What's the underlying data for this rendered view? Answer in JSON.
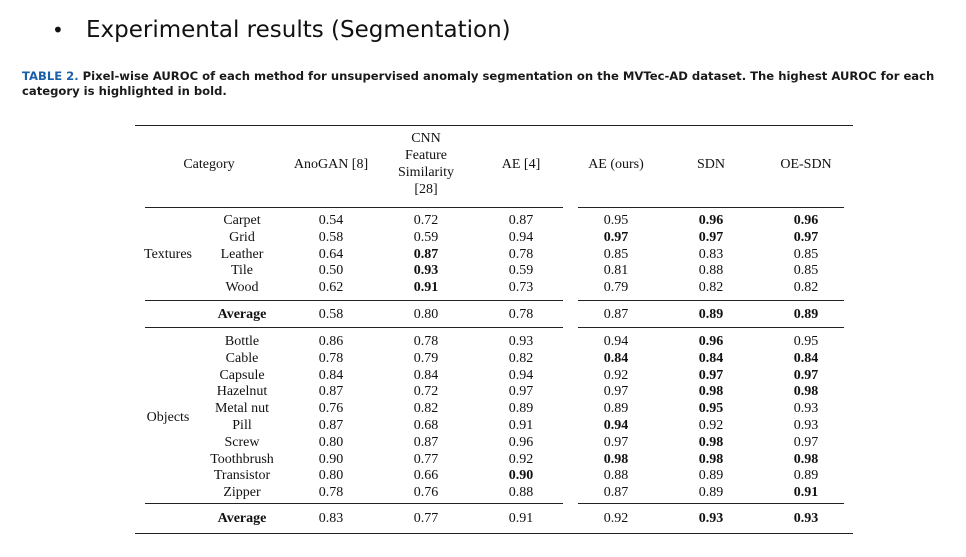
{
  "slide": {
    "bullet": "•",
    "title": "Experimental results (Segmentation)"
  },
  "caption": {
    "label": "TABLE 2.",
    "text": " Pixel-wise AUROC of each method for unsupervised anomaly segmentation on the MVTec-AD dataset. The highest AUROC for each category is highlighted in bold."
  },
  "table": {
    "headers": [
      "Category",
      "AnoGAN [8]",
      "CNN\nFeature\nSimilarity\n[28]",
      "AE [4]",
      "AE (ours)",
      "SDN",
      "OE-SDN"
    ],
    "groups": [
      {
        "name": "Textures",
        "rows": [
          {
            "category": "Carpet",
            "values": [
              "0.54",
              "0.72",
              "0.87",
              "0.95",
              "0.96",
              "0.96"
            ],
            "bold": [
              false,
              false,
              false,
              false,
              true,
              true
            ]
          },
          {
            "category": "Grid",
            "values": [
              "0.58",
              "0.59",
              "0.94",
              "0.97",
              "0.97",
              "0.97"
            ],
            "bold": [
              false,
              false,
              false,
              true,
              true,
              true
            ]
          },
          {
            "category": "Leather",
            "values": [
              "0.64",
              "0.87",
              "0.78",
              "0.85",
              "0.83",
              "0.85"
            ],
            "bold": [
              false,
              true,
              false,
              false,
              false,
              false
            ]
          },
          {
            "category": "Tile",
            "values": [
              "0.50",
              "0.93",
              "0.59",
              "0.81",
              "0.88",
              "0.85"
            ],
            "bold": [
              false,
              true,
              false,
              false,
              false,
              false
            ]
          },
          {
            "category": "Wood",
            "values": [
              "0.62",
              "0.91",
              "0.73",
              "0.79",
              "0.82",
              "0.82"
            ],
            "bold": [
              false,
              true,
              false,
              false,
              false,
              false
            ]
          }
        ],
        "average": {
          "label": "Average",
          "values": [
            "0.58",
            "0.80",
            "0.78",
            "0.87",
            "0.89",
            "0.89"
          ],
          "bold": [
            false,
            false,
            false,
            false,
            true,
            true
          ]
        }
      },
      {
        "name": "Objects",
        "rows": [
          {
            "category": "Bottle",
            "values": [
              "0.86",
              "0.78",
              "0.93",
              "0.94",
              "0.96",
              "0.95"
            ],
            "bold": [
              false,
              false,
              false,
              false,
              true,
              false
            ]
          },
          {
            "category": "Cable",
            "values": [
              "0.78",
              "0.79",
              "0.82",
              "0.84",
              "0.84",
              "0.84"
            ],
            "bold": [
              false,
              false,
              false,
              true,
              true,
              true
            ]
          },
          {
            "category": "Capsule",
            "values": [
              "0.84",
              "0.84",
              "0.94",
              "0.92",
              "0.97",
              "0.97"
            ],
            "bold": [
              false,
              false,
              false,
              false,
              true,
              true
            ]
          },
          {
            "category": "Hazelnut",
            "values": [
              "0.87",
              "0.72",
              "0.97",
              "0.97",
              "0.98",
              "0.98"
            ],
            "bold": [
              false,
              false,
              false,
              false,
              true,
              true
            ]
          },
          {
            "category": "Metal nut",
            "values": [
              "0.76",
              "0.82",
              "0.89",
              "0.89",
              "0.95",
              "0.93"
            ],
            "bold": [
              false,
              false,
              false,
              false,
              true,
              false
            ]
          },
          {
            "category": "Pill",
            "values": [
              "0.87",
              "0.68",
              "0.91",
              "0.94",
              "0.92",
              "0.93"
            ],
            "bold": [
              false,
              false,
              false,
              true,
              false,
              false
            ]
          },
          {
            "category": "Screw",
            "values": [
              "0.80",
              "0.87",
              "0.96",
              "0.97",
              "0.98",
              "0.97"
            ],
            "bold": [
              false,
              false,
              false,
              false,
              true,
              false
            ]
          },
          {
            "category": "Toothbrush",
            "values": [
              "0.90",
              "0.77",
              "0.92",
              "0.98",
              "0.98",
              "0.98"
            ],
            "bold": [
              false,
              false,
              false,
              true,
              true,
              true
            ]
          },
          {
            "category": "Transistor",
            "values": [
              "0.80",
              "0.66",
              "0.90",
              "0.88",
              "0.89",
              "0.89"
            ],
            "bold": [
              false,
              false,
              true,
              false,
              false,
              false
            ]
          },
          {
            "category": "Zipper",
            "values": [
              "0.78",
              "0.76",
              "0.88",
              "0.87",
              "0.89",
              "0.91"
            ],
            "bold": [
              false,
              false,
              false,
              false,
              false,
              true
            ]
          }
        ],
        "average": {
          "label": "Average",
          "values": [
            "0.83",
            "0.77",
            "0.91",
            "0.92",
            "0.93",
            "0.93"
          ],
          "bold": [
            false,
            false,
            false,
            false,
            true,
            true
          ]
        }
      }
    ]
  }
}
